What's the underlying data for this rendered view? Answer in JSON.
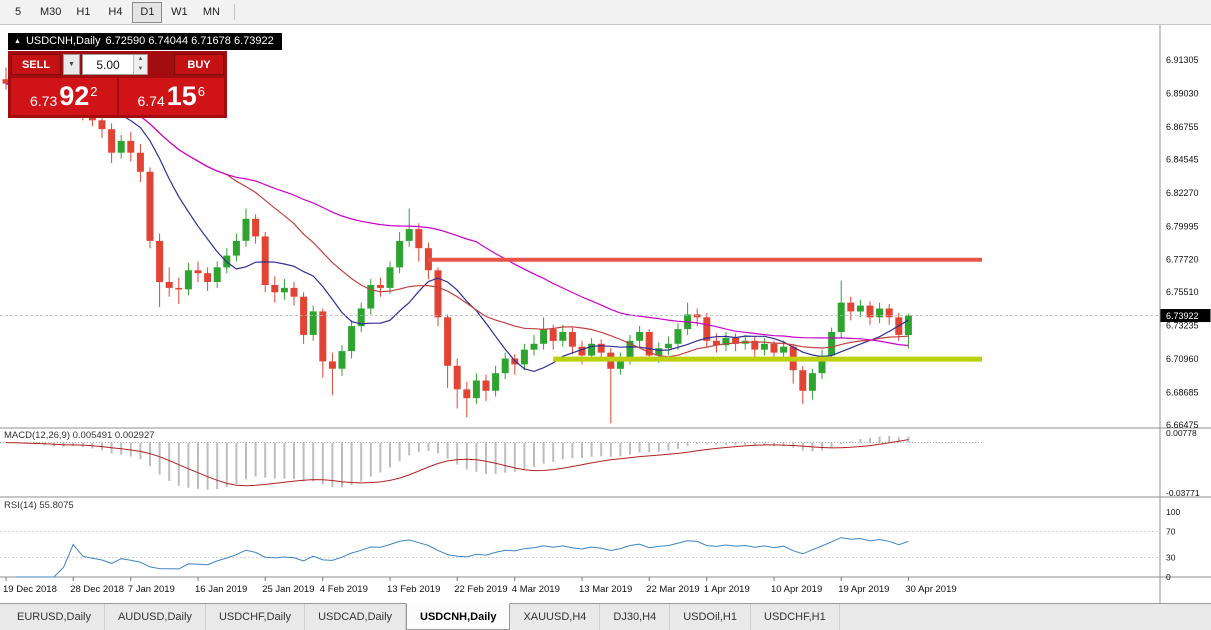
{
  "toolbar": {
    "timeframes": [
      "5",
      "M30",
      "H1",
      "H4",
      "D1",
      "W1",
      "MN"
    ],
    "active_timeframe": "D1"
  },
  "header": {
    "collapse_icon": "▲",
    "symbol": "USDCNH,Daily",
    "ohlc": "6.72590 6.74044 6.71678 6.73922"
  },
  "trade_panel": {
    "sell_label": "SELL",
    "buy_label": "BUY",
    "volume": "5.00",
    "dropdown_icon": "▼",
    "spin_up_icon": "▲",
    "spin_down_icon": "▼",
    "sell_price": {
      "prefix": "6.73",
      "big": "92",
      "sup": "2"
    },
    "buy_price": {
      "prefix": "6.74",
      "big": "15",
      "sup": "6"
    }
  },
  "tabs": {
    "items": [
      "EURUSD,Daily",
      "AUDUSD,Daily",
      "USDCHF,Daily",
      "USDCAD,Daily",
      "USDCNH,Daily",
      "XAUUSD,H4",
      "DJ30,H4",
      "USDOil,H1",
      "USDCHF,H1"
    ],
    "active_index": 4
  },
  "chart_data": [
    {
      "type": "candlestick",
      "title": "USDCNH,Daily",
      "bull_color": "#2fa32f",
      "bear_color": "#e14434",
      "current_price": 6.73922,
      "current_price_label": "6.73922",
      "y_axis": {
        "top_price": 6.91305,
        "bottom_price": 6.66475,
        "labels": [
          "6.91305",
          "6.89030",
          "6.86755",
          "6.84545",
          "6.82270",
          "6.79995",
          "6.77720",
          "6.75510",
          "6.73235",
          "6.70960",
          "6.68685",
          "6.66475"
        ]
      },
      "x_labels": [
        {
          "index": 0,
          "label": "19 Dec 2018"
        },
        {
          "index": 7,
          "label": "28 Dec 2018"
        },
        {
          "index": 13,
          "label": "7 Jan 2019"
        },
        {
          "index": 20,
          "label": "16 Jan 2019"
        },
        {
          "index": 27,
          "label": "25 Jan 2019"
        },
        {
          "index": 33,
          "label": "4 Feb 2019"
        },
        {
          "index": 40,
          "label": "13 Feb 2019"
        },
        {
          "index": 47,
          "label": "22 Feb 2019"
        },
        {
          "index": 53,
          "label": "4 Mar 2019"
        },
        {
          "index": 60,
          "label": "13 Mar 2019"
        },
        {
          "index": 67,
          "label": "22 Mar 2019"
        },
        {
          "index": 73,
          "label": "1 Apr 2019"
        },
        {
          "index": 80,
          "label": "10 Apr 2019"
        },
        {
          "index": 87,
          "label": "19 Apr 2019"
        },
        {
          "index": 94,
          "label": "30 Apr 2019"
        }
      ],
      "resistance_line": {
        "price": 6.7772,
        "color": "#e8534a",
        "from_index": 44
      },
      "support_line": {
        "price": 6.7096,
        "color": "#bcd00e",
        "from_index": 57
      },
      "moving_averages": [
        {
          "period": 10,
          "color": "#2e2e96"
        },
        {
          "period": 24,
          "color": "#c24242"
        },
        {
          "period": 50,
          "color": "#cc00cc"
        }
      ],
      "ohlc": [
        [
          6.9,
          6.908,
          6.893,
          6.897
        ],
        [
          6.897,
          6.902,
          6.888,
          6.893
        ],
        [
          6.893,
          6.898,
          6.885,
          6.89
        ],
        [
          6.89,
          6.895,
          6.882,
          6.888
        ],
        [
          6.888,
          6.892,
          6.878,
          6.884
        ],
        [
          6.884,
          6.889,
          6.874,
          6.88
        ],
        [
          6.88,
          6.888,
          6.876,
          6.883
        ],
        [
          6.883,
          6.905,
          6.88,
          6.897
        ],
        [
          6.897,
          6.9,
          6.872,
          6.878
        ],
        [
          6.878,
          6.884,
          6.868,
          6.872
        ],
        [
          6.872,
          6.88,
          6.86,
          6.866
        ],
        [
          6.866,
          6.87,
          6.843,
          6.85
        ],
        [
          6.85,
          6.862,
          6.846,
          6.858
        ],
        [
          6.858,
          6.864,
          6.844,
          6.85
        ],
        [
          6.85,
          6.856,
          6.83,
          6.837
        ],
        [
          6.837,
          6.84,
          6.785,
          6.79
        ],
        [
          6.79,
          6.795,
          6.745,
          6.762
        ],
        [
          6.762,
          6.772,
          6.752,
          6.758
        ],
        [
          6.758,
          6.765,
          6.747,
          6.757
        ],
        [
          6.757,
          6.775,
          6.753,
          6.77
        ],
        [
          6.77,
          6.776,
          6.762,
          6.768
        ],
        [
          6.768,
          6.772,
          6.756,
          6.762
        ],
        [
          6.762,
          6.776,
          6.758,
          6.772
        ],
        [
          6.772,
          6.785,
          6.768,
          6.78
        ],
        [
          6.78,
          6.795,
          6.776,
          6.79
        ],
        [
          6.79,
          6.812,
          6.786,
          6.805
        ],
        [
          6.805,
          6.808,
          6.788,
          6.793
        ],
        [
          6.793,
          6.796,
          6.755,
          6.76
        ],
        [
          6.76,
          6.766,
          6.748,
          6.755
        ],
        [
          6.755,
          6.764,
          6.75,
          6.758
        ],
        [
          6.758,
          6.762,
          6.746,
          6.752
        ],
        [
          6.752,
          6.755,
          6.72,
          6.726
        ],
        [
          6.726,
          6.746,
          6.722,
          6.742
        ],
        [
          6.742,
          6.744,
          6.697,
          6.708
        ],
        [
          6.708,
          6.714,
          6.685,
          6.703
        ],
        [
          6.703,
          6.719,
          6.698,
          6.715
        ],
        [
          6.715,
          6.736,
          6.71,
          6.732
        ],
        [
          6.732,
          6.748,
          6.728,
          6.744
        ],
        [
          6.744,
          6.764,
          6.74,
          6.76
        ],
        [
          6.76,
          6.765,
          6.752,
          6.758
        ],
        [
          6.758,
          6.776,
          6.754,
          6.772
        ],
        [
          6.772,
          6.796,
          6.768,
          6.79
        ],
        [
          6.79,
          6.812,
          6.786,
          6.798
        ],
        [
          6.798,
          6.802,
          6.776,
          6.785
        ],
        [
          6.785,
          6.789,
          6.764,
          6.77
        ],
        [
          6.77,
          6.772,
          6.732,
          6.738
        ],
        [
          6.738,
          6.74,
          6.69,
          6.705
        ],
        [
          6.705,
          6.71,
          6.676,
          6.689
        ],
        [
          6.689,
          6.694,
          6.67,
          6.683
        ],
        [
          6.683,
          6.7,
          6.679,
          6.695
        ],
        [
          6.695,
          6.699,
          6.681,
          6.688
        ],
        [
          6.688,
          6.705,
          6.684,
          6.7
        ],
        [
          6.7,
          6.714,
          6.696,
          6.71
        ],
        [
          6.71,
          6.713,
          6.699,
          6.706
        ],
        [
          6.706,
          6.72,
          6.702,
          6.716
        ],
        [
          6.716,
          6.726,
          6.712,
          6.72
        ],
        [
          6.72,
          6.738,
          6.716,
          6.73
        ],
        [
          6.73,
          6.733,
          6.716,
          6.722
        ],
        [
          6.722,
          6.733,
          6.718,
          6.728
        ],
        [
          6.728,
          6.731,
          6.713,
          6.718
        ],
        [
          6.718,
          6.722,
          6.706,
          6.712
        ],
        [
          6.712,
          6.724,
          6.708,
          6.72
        ],
        [
          6.72,
          6.723,
          6.708,
          6.714
        ],
        [
          6.714,
          6.717,
          6.666,
          6.703
        ],
        [
          6.703,
          6.714,
          6.699,
          6.71
        ],
        [
          6.71,
          6.726,
          6.706,
          6.722
        ],
        [
          6.722,
          6.732,
          6.718,
          6.728
        ],
        [
          6.728,
          6.73,
          6.708,
          6.712
        ],
        [
          6.712,
          6.721,
          6.707,
          6.717
        ],
        [
          6.717,
          6.725,
          6.712,
          6.72
        ],
        [
          6.72,
          6.734,
          6.716,
          6.73
        ],
        [
          6.73,
          6.748,
          6.726,
          6.74
        ],
        [
          6.74,
          6.744,
          6.732,
          6.738
        ],
        [
          6.738,
          6.741,
          6.718,
          6.722
        ],
        [
          6.722,
          6.727,
          6.714,
          6.719
        ],
        [
          6.719,
          6.728,
          6.715,
          6.724
        ],
        [
          6.724,
          6.727,
          6.715,
          6.72
        ],
        [
          6.72,
          6.726,
          6.716,
          6.722
        ],
        [
          6.722,
          6.725,
          6.711,
          6.716
        ],
        [
          6.716,
          6.724,
          6.712,
          6.72
        ],
        [
          6.72,
          6.722,
          6.709,
          6.714
        ],
        [
          6.714,
          6.722,
          6.71,
          6.718
        ],
        [
          6.718,
          6.72,
          6.693,
          6.702
        ],
        [
          6.702,
          6.705,
          6.679,
          6.688
        ],
        [
          6.688,
          6.703,
          6.682,
          6.7
        ],
        [
          6.7,
          6.716,
          6.696,
          6.712
        ],
        [
          6.712,
          6.731,
          6.708,
          6.728
        ],
        [
          6.728,
          6.763,
          6.724,
          6.748
        ],
        [
          6.748,
          6.752,
          6.736,
          6.742
        ],
        [
          6.742,
          6.75,
          6.738,
          6.746
        ],
        [
          6.746,
          6.749,
          6.733,
          6.738
        ],
        [
          6.738,
          6.748,
          6.734,
          6.744
        ],
        [
          6.744,
          6.747,
          6.733,
          6.738
        ],
        [
          6.738,
          6.741,
          6.722,
          6.726
        ],
        [
          6.7259,
          6.74044,
          6.71678,
          6.73922
        ]
      ]
    },
    {
      "type": "macd",
      "label": "MACD(12,26,9) 0.005491 0.002927",
      "params": [
        12,
        26,
        9
      ],
      "scale_labels": [
        "0.00778",
        "-0.03771"
      ],
      "range": [
        -0.03771,
        0.00778
      ],
      "histogram_color": "#bdbdbd",
      "signal_color": "#b22222"
    },
    {
      "type": "rsi",
      "label": "RSI(14) 55.8075",
      "period": 14,
      "value": 55.8075,
      "scale_labels": [
        "100",
        "70",
        "30",
        "0"
      ],
      "levels": [
        70,
        30
      ],
      "line_color": "#3d85c6"
    }
  ]
}
